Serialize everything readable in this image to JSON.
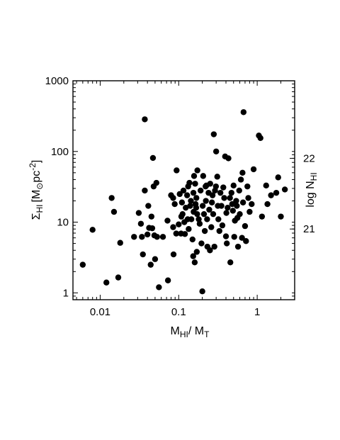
{
  "chart_data": {
    "type": "scatter",
    "title": "",
    "xscale": "log",
    "yscale": "log",
    "xlim": [
      0.0045,
      3.0
    ],
    "ylim": [
      0.8,
      1000
    ],
    "grid": false,
    "legend": "none",
    "xlabel": {
      "main": "M",
      "sub1": "HI",
      "mid": "/ M",
      "sub2": "T"
    },
    "ylabel": {
      "sigma": "Σ",
      "sub": "HI",
      "unit_a": "[M",
      "sun": "⊙",
      "unit_b": "pc",
      "sup": "-2",
      "unit_c": "]"
    },
    "y2label": {
      "pre": "log  N",
      "sub": "HI"
    },
    "xticks": [
      {
        "value": 0.01,
        "label": "0.01"
      },
      {
        "value": 0.1,
        "label": "0.1"
      },
      {
        "value": 1,
        "label": "1"
      }
    ],
    "yticks": [
      {
        "value": 1,
        "label": "1"
      },
      {
        "value": 10,
        "label": "10"
      },
      {
        "value": 100,
        "label": "100"
      },
      {
        "value": 1000,
        "label": "1000"
      }
    ],
    "y2ticks": [
      {
        "value": 21,
        "label": "21"
      },
      {
        "value": 22,
        "label": "22"
      }
    ],
    "marker_color": "#000000",
    "points": [
      [
        0.006,
        2.5
      ],
      [
        0.008,
        7.8
      ],
      [
        0.012,
        1.4
      ],
      [
        0.014,
        22
      ],
      [
        0.015,
        14
      ],
      [
        0.017,
        1.65
      ],
      [
        0.018,
        5.1
      ],
      [
        0.027,
        6.2
      ],
      [
        0.031,
        13.5
      ],
      [
        0.033,
        9.5
      ],
      [
        0.034,
        6.2
      ],
      [
        0.035,
        3.5
      ],
      [
        0.037,
        28
      ],
      [
        0.037,
        285
      ],
      [
        0.04,
        6.7
      ],
      [
        0.041,
        17
      ],
      [
        0.042,
        8.3
      ],
      [
        0.044,
        2.5
      ],
      [
        0.045,
        12
      ],
      [
        0.046,
        8.2
      ],
      [
        0.047,
        81
      ],
      [
        0.048,
        32
      ],
      [
        0.049,
        6.5
      ],
      [
        0.05,
        3.0
      ],
      [
        0.052,
        36
      ],
      [
        0.053,
        6.2
      ],
      [
        0.056,
        1.2
      ],
      [
        0.063,
        6.2
      ],
      [
        0.072,
        10.5
      ],
      [
        0.073,
        1.5
      ],
      [
        0.08,
        24
      ],
      [
        0.085,
        22
      ],
      [
        0.085,
        8.5
      ],
      [
        0.086,
        3.5
      ],
      [
        0.089,
        18
      ],
      [
        0.093,
        6.9
      ],
      [
        0.094,
        54
      ],
      [
        0.1,
        9.3
      ],
      [
        0.103,
        25
      ],
      [
        0.107,
        6.9
      ],
      [
        0.108,
        12
      ],
      [
        0.11,
        19
      ],
      [
        0.112,
        13
      ],
      [
        0.115,
        28
      ],
      [
        0.118,
        10
      ],
      [
        0.12,
        6.8
      ],
      [
        0.123,
        16
      ],
      [
        0.128,
        24
      ],
      [
        0.13,
        11
      ],
      [
        0.132,
        32
      ],
      [
        0.134,
        8
      ],
      [
        0.137,
        36
      ],
      [
        0.14,
        17
      ],
      [
        0.143,
        20
      ],
      [
        0.145,
        11
      ],
      [
        0.15,
        5.7
      ],
      [
        0.153,
        3.3
      ],
      [
        0.154,
        26
      ],
      [
        0.155,
        14
      ],
      [
        0.157,
        45
      ],
      [
        0.16,
        2.7
      ],
      [
        0.162,
        35
      ],
      [
        0.164,
        18
      ],
      [
        0.167,
        16
      ],
      [
        0.168,
        22
      ],
      [
        0.17,
        3.8
      ],
      [
        0.172,
        13
      ],
      [
        0.173,
        54
      ],
      [
        0.18,
        11
      ],
      [
        0.185,
        9.5
      ],
      [
        0.19,
        28
      ],
      [
        0.195,
        5
      ],
      [
        0.2,
        1.05
      ],
      [
        0.202,
        17
      ],
      [
        0.205,
        45
      ],
      [
        0.21,
        13
      ],
      [
        0.215,
        7.5
      ],
      [
        0.22,
        32
      ],
      [
        0.222,
        20
      ],
      [
        0.225,
        33
      ],
      [
        0.23,
        11
      ],
      [
        0.232,
        4.5
      ],
      [
        0.24,
        26
      ],
      [
        0.245,
        15
      ],
      [
        0.25,
        4
      ],
      [
        0.252,
        35
      ],
      [
        0.26,
        8.5
      ],
      [
        0.265,
        19
      ],
      [
        0.27,
        24
      ],
      [
        0.275,
        13
      ],
      [
        0.28,
        175
      ],
      [
        0.285,
        4.5
      ],
      [
        0.29,
        28
      ],
      [
        0.298,
        32
      ],
      [
        0.3,
        100
      ],
      [
        0.31,
        44
      ],
      [
        0.315,
        17
      ],
      [
        0.32,
        11
      ],
      [
        0.33,
        7.5
      ],
      [
        0.34,
        26
      ],
      [
        0.35,
        17
      ],
      [
        0.36,
        9
      ],
      [
        0.37,
        31
      ],
      [
        0.38,
        22
      ],
      [
        0.39,
        85
      ],
      [
        0.4,
        6.3
      ],
      [
        0.405,
        13.5
      ],
      [
        0.41,
        5
      ],
      [
        0.42,
        16
      ],
      [
        0.43,
        80
      ],
      [
        0.45,
        22
      ],
      [
        0.455,
        2.7
      ],
      [
        0.47,
        26
      ],
      [
        0.48,
        18
      ],
      [
        0.49,
        14.5
      ],
      [
        0.5,
        33
      ],
      [
        0.51,
        6.2
      ],
      [
        0.52,
        10.5
      ],
      [
        0.54,
        20
      ],
      [
        0.55,
        17
      ],
      [
        0.56,
        11.5
      ],
      [
        0.57,
        4.5
      ],
      [
        0.59,
        28
      ],
      [
        0.6,
        13
      ],
      [
        0.62,
        40
      ],
      [
        0.64,
        6
      ],
      [
        0.65,
        50
      ],
      [
        0.66,
        19
      ],
      [
        0.67,
        360
      ],
      [
        0.7,
        8.8
      ],
      [
        0.72,
        5.4
      ],
      [
        0.75,
        32
      ],
      [
        0.77,
        22
      ],
      [
        0.8,
        14
      ],
      [
        0.85,
        18
      ],
      [
        0.9,
        56
      ],
      [
        1.05,
        168
      ],
      [
        1.1,
        155
      ],
      [
        1.15,
        12
      ],
      [
        1.3,
        33
      ],
      [
        1.35,
        18
      ],
      [
        1.5,
        24
      ],
      [
        1.75,
        26
      ],
      [
        1.85,
        43
      ],
      [
        2.0,
        12
      ],
      [
        2.25,
        29
      ]
    ]
  }
}
